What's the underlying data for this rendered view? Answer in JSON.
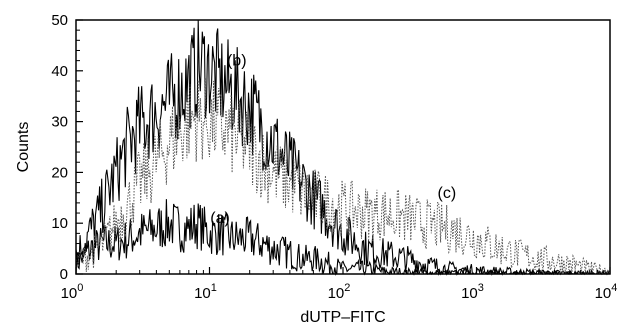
{
  "chart_data": {
    "type": "line",
    "title": "",
    "xlabel": "dUTP–FITC",
    "ylabel": "Counts",
    "x_scale": "log",
    "xlim": [
      1,
      10000
    ],
    "ylim": [
      0,
      50
    ],
    "x_ticks": [
      {
        "value": 1,
        "base": "10",
        "exp": "0"
      },
      {
        "value": 10,
        "base": "10",
        "exp": "1"
      },
      {
        "value": 100,
        "base": "10",
        "exp": "2"
      },
      {
        "value": 1000,
        "base": "10",
        "exp": "3"
      },
      {
        "value": 10000,
        "base": "10",
        "exp": "4"
      }
    ],
    "y_ticks": [
      0,
      10,
      20,
      30,
      40,
      50
    ],
    "grid": false,
    "series": [
      {
        "name": "(a)",
        "style": "solid",
        "points": [
          [
            1,
            2
          ],
          [
            1.3,
            5
          ],
          [
            1.6,
            6
          ],
          [
            2,
            6
          ],
          [
            2.5,
            7
          ],
          [
            3,
            8
          ],
          [
            4,
            9
          ],
          [
            5,
            10
          ],
          [
            6,
            9
          ],
          [
            7,
            9
          ],
          [
            8,
            10
          ],
          [
            10,
            8
          ],
          [
            12,
            8
          ],
          [
            15,
            7
          ],
          [
            20,
            7
          ],
          [
            25,
            6
          ],
          [
            30,
            5
          ],
          [
            40,
            4
          ],
          [
            50,
            3
          ],
          [
            60,
            3
          ],
          [
            80,
            2
          ],
          [
            100,
            1
          ],
          [
            150,
            1
          ],
          [
            200,
            0.5
          ],
          [
            300,
            0.3
          ],
          [
            500,
            0.2
          ],
          [
            1000,
            0.1
          ],
          [
            2000,
            0
          ],
          [
            10000,
            0
          ]
        ]
      },
      {
        "name": "(b)",
        "style": "solid",
        "points": [
          [
            1,
            4
          ],
          [
            1.2,
            7
          ],
          [
            1.5,
            12
          ],
          [
            2,
            20
          ],
          [
            2.5,
            26
          ],
          [
            3,
            29
          ],
          [
            4,
            32
          ],
          [
            5,
            34
          ],
          [
            6,
            36
          ],
          [
            7,
            38
          ],
          [
            8,
            40
          ],
          [
            9,
            41
          ],
          [
            10,
            40
          ],
          [
            12,
            38
          ],
          [
            15,
            36
          ],
          [
            20,
            33
          ],
          [
            25,
            29
          ],
          [
            30,
            26
          ],
          [
            40,
            21
          ],
          [
            50,
            18
          ],
          [
            60,
            15
          ],
          [
            80,
            11
          ],
          [
            100,
            8
          ],
          [
            150,
            5
          ],
          [
            200,
            4
          ],
          [
            300,
            3
          ],
          [
            400,
            2
          ],
          [
            600,
            1
          ],
          [
            1000,
            0.6
          ],
          [
            2000,
            0.3
          ],
          [
            10000,
            0
          ]
        ]
      },
      {
        "name": "(c)",
        "style": "dotted",
        "points": [
          [
            1,
            2
          ],
          [
            1.3,
            4
          ],
          [
            1.6,
            6
          ],
          [
            2,
            10
          ],
          [
            2.5,
            14
          ],
          [
            3,
            18
          ],
          [
            4,
            22
          ],
          [
            5,
            26
          ],
          [
            6,
            28
          ],
          [
            7,
            30
          ],
          [
            8,
            31
          ],
          [
            10,
            30
          ],
          [
            12,
            29
          ],
          [
            15,
            27
          ],
          [
            20,
            25
          ],
          [
            25,
            22
          ],
          [
            30,
            20
          ],
          [
            40,
            18
          ],
          [
            50,
            16
          ],
          [
            60,
            15
          ],
          [
            80,
            14
          ],
          [
            100,
            13
          ],
          [
            150,
            12
          ],
          [
            200,
            12
          ],
          [
            300,
            11
          ],
          [
            400,
            10
          ],
          [
            600,
            9
          ],
          [
            800,
            8
          ],
          [
            1000,
            7
          ],
          [
            1500,
            5
          ],
          [
            2000,
            4
          ],
          [
            3000,
            3
          ],
          [
            5000,
            2
          ],
          [
            7000,
            1
          ],
          [
            10000,
            0.5
          ]
        ]
      }
    ],
    "annotations": [
      {
        "text": "(a)",
        "x": 12,
        "y": 10
      },
      {
        "text": "(b)",
        "x": 16,
        "y": 41
      },
      {
        "text": "(c)",
        "x": 600,
        "y": 15
      }
    ]
  }
}
